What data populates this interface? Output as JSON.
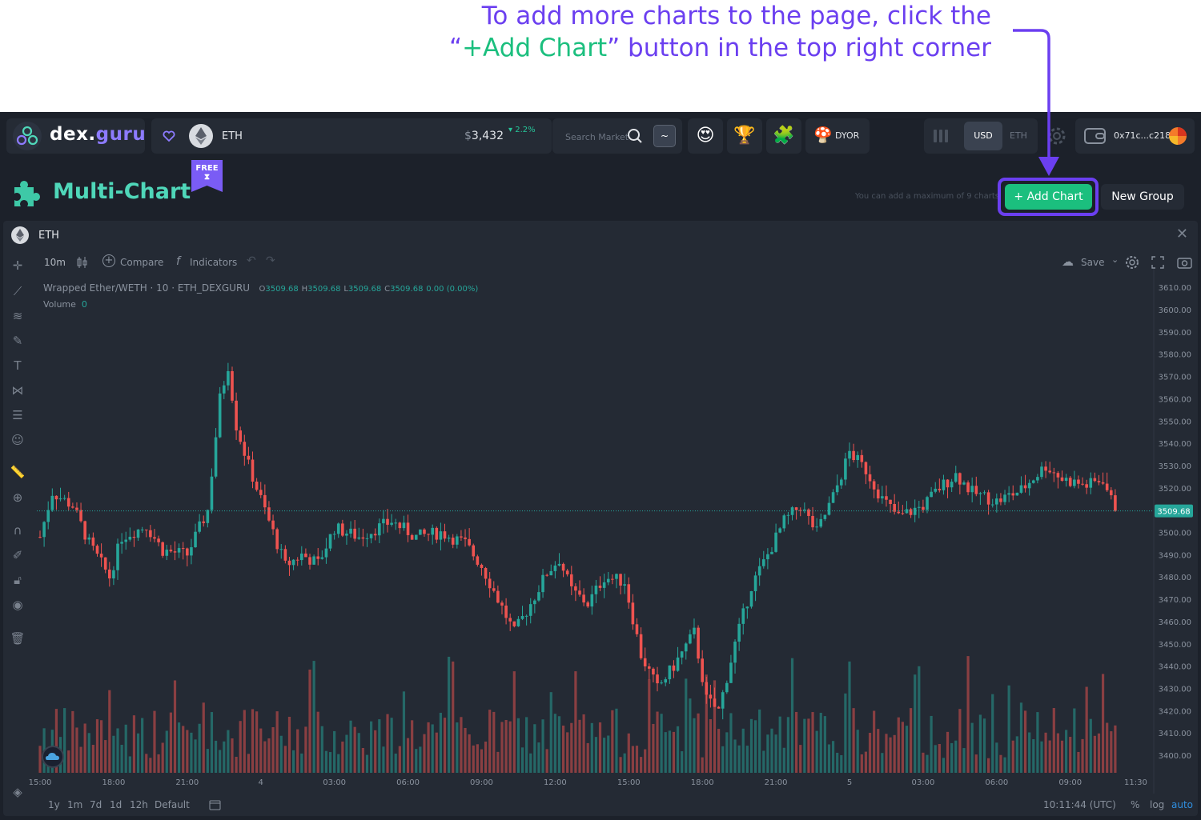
{
  "annotation": {
    "line1": "To add more charts to the page, click the",
    "line2_quote_open": "“",
    "line2_highlight": "+Add Chart",
    "line2_rest": "” button in the top right corner"
  },
  "topbar": {
    "logo_main": "dex.",
    "logo_accent": "guru",
    "pair_symbol": "ETH",
    "price_currency": "$",
    "price_value": "3,432",
    "price_change": "2.2%",
    "search_placeholder": "Search Market",
    "search_mode": "~",
    "dyor_label": "DYOR",
    "currency_usd": "USD",
    "currency_eth": "ETH",
    "wallet_address": "0x71c...c218",
    "emoji_1": "😍",
    "emoji_2": "🏆",
    "emoji_3": "🧩",
    "emoji_4": "🍄"
  },
  "subheader": {
    "title": "Multi-Chart",
    "badge": "FREE",
    "badge_icon": "⧗",
    "max_note": "You can add a maximum of 9 charts",
    "add_chart_label": "+ Add Chart",
    "new_group_label": "New Group"
  },
  "chart_panel": {
    "title": "ETH",
    "close": "✕",
    "toolbar": {
      "interval": "10m",
      "compare": "Compare",
      "indicators": "Indicators",
      "save": "Save",
      "plus": "+",
      "fx": "f",
      "cloud": "☁",
      "chevron": "⌄"
    },
    "legend": {
      "symbol": "Wrapped Ether/WETH",
      "interval": "10",
      "source": "ETH_DEXGURU",
      "o_label": "O",
      "o": "3509.68",
      "h_label": "H",
      "h": "3509.68",
      "l_label": "L",
      "l": "3509.68",
      "c_label": "C",
      "c": "3509.68",
      "change": "0.00 (0.00%)",
      "volume_label": "Volume",
      "volume_value": "0"
    },
    "bottom": {
      "ranges": [
        "1y",
        "1m",
        "7d",
        "1d",
        "12h",
        "Default"
      ],
      "time": "10:11:44 (UTC)",
      "pct": "%",
      "log": "log",
      "auto": "auto"
    }
  },
  "chart_data": {
    "type": "candlestick",
    "last_price": 3509.68,
    "last_price_label": "3509.68",
    "ylim": [
      3395,
      3614
    ],
    "y_ticks": [
      3610,
      3600,
      3590,
      3580,
      3570,
      3560,
      3550,
      3540,
      3530,
      3520,
      3510,
      3500,
      3490,
      3480,
      3470,
      3460,
      3450,
      3440,
      3430,
      3420,
      3410,
      3400
    ],
    "y_tick_labels": [
      "3610.00",
      "3600.00",
      "3590.00",
      "3580.00",
      "3570.00",
      "3560.00",
      "3550.00",
      "3540.00",
      "3530.00",
      "3520.00",
      "3510.00",
      "3500.00",
      "3490.00",
      "3480.00",
      "3470.00",
      "3460.00",
      "3450.00",
      "3440.00",
      "3430.00",
      "3420.00",
      "3410.00",
      "3400.00"
    ],
    "x_tick_labels": [
      "15:00",
      "18:00",
      "21:00",
      "4",
      "03:00",
      "06:00",
      "09:00",
      "12:00",
      "15:00",
      "18:00",
      "21:00",
      "5",
      "03:00",
      "06:00",
      "09:00",
      "11:30"
    ],
    "x_tick_positions": [
      0,
      18,
      36,
      54,
      72,
      90,
      108,
      126,
      144,
      162,
      180,
      198,
      216,
      234,
      252,
      268
    ],
    "candles_count": 264,
    "close_path": [
      [
        0,
        3498
      ],
      [
        3,
        3518
      ],
      [
        8,
        3512
      ],
      [
        12,
        3495
      ],
      [
        17,
        3480
      ],
      [
        20,
        3498
      ],
      [
        26,
        3503
      ],
      [
        30,
        3492
      ],
      [
        36,
        3490
      ],
      [
        41,
        3510
      ],
      [
        44,
        3560
      ],
      [
        46,
        3575
      ],
      [
        48,
        3548
      ],
      [
        51,
        3530
      ],
      [
        55,
        3510
      ],
      [
        58,
        3495
      ],
      [
        60,
        3485
      ],
      [
        64,
        3490
      ],
      [
        68,
        3486
      ],
      [
        72,
        3502
      ],
      [
        78,
        3498
      ],
      [
        86,
        3505
      ],
      [
        92,
        3498
      ],
      [
        98,
        3500
      ],
      [
        104,
        3495
      ],
      [
        108,
        3485
      ],
      [
        112,
        3470
      ],
      [
        116,
        3455
      ],
      [
        120,
        3468
      ],
      [
        124,
        3482
      ],
      [
        127,
        3488
      ],
      [
        130,
        3474
      ],
      [
        134,
        3468
      ],
      [
        138,
        3480
      ],
      [
        143,
        3478
      ],
      [
        147,
        3445
      ],
      [
        151,
        3430
      ],
      [
        155,
        3440
      ],
      [
        160,
        3455
      ],
      [
        163,
        3425
      ],
      [
        166,
        3420
      ],
      [
        170,
        3450
      ],
      [
        174,
        3476
      ],
      [
        178,
        3490
      ],
      [
        182,
        3505
      ],
      [
        186,
        3512
      ],
      [
        190,
        3500
      ],
      [
        194,
        3516
      ],
      [
        198,
        3536
      ],
      [
        202,
        3528
      ],
      [
        206,
        3515
      ],
      [
        210,
        3507
      ],
      [
        216,
        3512
      ],
      [
        220,
        3520
      ],
      [
        224,
        3526
      ],
      [
        228,
        3518
      ],
      [
        234,
        3514
      ],
      [
        240,
        3519
      ],
      [
        246,
        3530
      ],
      [
        250,
        3524
      ],
      [
        256,
        3521
      ],
      [
        260,
        3524
      ],
      [
        263,
        3509.68
      ]
    ],
    "volume_ylim": [
      0,
      3300
    ]
  }
}
